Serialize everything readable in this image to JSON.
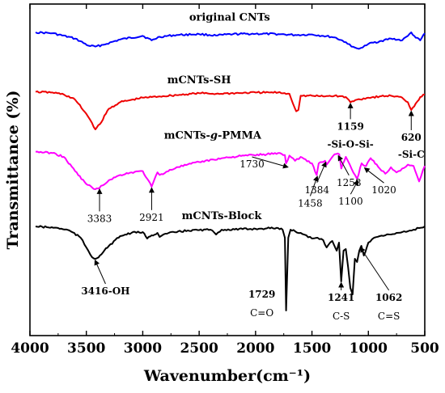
{
  "chart_data": {
    "type": "line",
    "title": "",
    "xlabel": "Wavenumber(cm⁻¹)",
    "ylabel": "Transmittance (%)",
    "xlim": [
      4000,
      500
    ],
    "x_reversed": true,
    "xticks": [
      4000,
      3500,
      3000,
      2500,
      2000,
      1500,
      1000,
      500
    ],
    "yticks_shown": false,
    "grid": false,
    "legend": "none",
    "series": [
      {
        "name": "original CNTs",
        "color": "#0000ff",
        "x": [
          3950,
          3800,
          3600,
          3480,
          3420,
          3350,
          3200,
          3000,
          2921,
          2850,
          2700,
          2500,
          2350,
          2200,
          2000,
          1800,
          1650,
          1500,
          1400,
          1300,
          1200,
          1150,
          1100,
          1050,
          1000,
          900,
          800,
          700,
          650,
          620,
          580,
          540,
          500
        ],
        "y": [
          1.0,
          0.95,
          0.65,
          0.25,
          0.2,
          0.3,
          0.6,
          0.8,
          0.55,
          0.75,
          0.85,
          0.9,
          0.82,
          0.9,
          0.92,
          0.9,
          0.85,
          0.88,
          0.8,
          0.72,
          0.45,
          0.2,
          0.1,
          0.15,
          0.35,
          0.5,
          0.65,
          0.55,
          0.8,
          1.0,
          0.7,
          0.55,
          0.95
        ]
      },
      {
        "name": "mCNTs-SH",
        "color": "#ee0000",
        "x": [
          3950,
          3800,
          3700,
          3600,
          3500,
          3450,
          3420,
          3380,
          3300,
          3200,
          3000,
          2921,
          2850,
          2700,
          2500,
          2350,
          2000,
          1800,
          1700,
          1640,
          1620,
          1600,
          1500,
          1400,
          1300,
          1200,
          1159,
          1100,
          1000,
          900,
          800,
          700,
          650,
          620,
          580,
          540,
          500
        ],
        "y": [
          0.9,
          0.85,
          0.7,
          0.3,
          -0.8,
          -1.5,
          -2.0,
          -1.6,
          -0.4,
          0.1,
          0.45,
          0.5,
          0.55,
          0.65,
          0.8,
          0.75,
          0.85,
          0.85,
          0.75,
          -0.6,
          -0.5,
          0.6,
          0.6,
          0.55,
          0.6,
          0.5,
          0.1,
          0.3,
          0.45,
          0.55,
          0.6,
          0.45,
          0.1,
          -0.5,
          0.0,
          0.5,
          0.7
        ]
      },
      {
        "name": "mCNTs-g-PMMA",
        "color": "#ff00ff",
        "x": [
          3950,
          3800,
          3700,
          3600,
          3500,
          3420,
          3383,
          3300,
          3200,
          3100,
          3000,
          2960,
          2921,
          2870,
          2850,
          2700,
          2500,
          2300,
          2100,
          1900,
          1800,
          1740,
          1730,
          1700,
          1650,
          1600,
          1500,
          1458,
          1440,
          1384,
          1370,
          1300,
          1258,
          1240,
          1200,
          1150,
          1100,
          1060,
          1020,
          980,
          900,
          850,
          800,
          750,
          700,
          650,
          600,
          550,
          500
        ],
        "y": [
          0.95,
          0.9,
          0.75,
          0.2,
          -0.3,
          -0.5,
          -0.45,
          -0.15,
          0.05,
          0.15,
          0.2,
          -0.1,
          -0.4,
          0.15,
          0.05,
          0.35,
          0.55,
          0.7,
          0.8,
          0.85,
          0.9,
          0.82,
          0.5,
          0.8,
          0.6,
          0.75,
          0.5,
          0.05,
          0.5,
          0.6,
          0.45,
          0.85,
          0.85,
          0.3,
          0.75,
          0.3,
          -0.1,
          0.5,
          0.4,
          0.7,
          0.3,
          0.1,
          0.35,
          0.15,
          0.3,
          0.45,
          0.4,
          -0.2,
          0.4
        ]
      },
      {
        "name": "mCNTs-Block",
        "color": "#000000",
        "x": [
          3950,
          3850,
          3750,
          3650,
          3550,
          3500,
          3450,
          3416,
          3380,
          3300,
          3200,
          3100,
          3000,
          2960,
          2921,
          2870,
          2850,
          2800,
          2600,
          2400,
          2350,
          2300,
          2000,
          1900,
          1800,
          1760,
          1740,
          1729,
          1710,
          1690,
          1650,
          1600,
          1550,
          1500,
          1450,
          1400,
          1370,
          1320,
          1280,
          1260,
          1241,
          1220,
          1200,
          1180,
          1160,
          1140,
          1120,
          1100,
          1080,
          1062,
          1040,
          1000,
          950,
          900,
          850,
          800,
          750,
          700,
          650,
          600,
          550,
          500
        ],
        "y": [
          1.0,
          0.95,
          0.9,
          0.75,
          0.3,
          -0.3,
          -0.9,
          -1.0,
          -0.8,
          -0.2,
          0.4,
          0.6,
          0.65,
          0.25,
          0.45,
          0.6,
          0.35,
          0.55,
          0.75,
          0.8,
          0.5,
          0.8,
          0.85,
          0.88,
          0.9,
          0.8,
          0.3,
          -4.2,
          0.3,
          0.8,
          0.7,
          0.6,
          0.45,
          0.25,
          0.3,
          0.15,
          -0.3,
          0.1,
          -0.5,
          0.0,
          -2.4,
          -0.5,
          -0.4,
          -1.5,
          -2.8,
          -3.2,
          -1.0,
          -1.2,
          -0.5,
          -0.2,
          -0.8,
          0.0,
          0.3,
          0.4,
          0.45,
          0.5,
          0.6,
          0.65,
          0.7,
          0.8,
          0.9,
          1.0
        ]
      }
    ],
    "series_labels": [
      {
        "text": "original CNTs",
        "x": 2230,
        "y": 1.65
      },
      {
        "text": "mCNTs-SH",
        "x": 2500,
        "y": 1.55
      },
      {
        "text": "mCNTs-g-PMMA",
        "x": 2380,
        "y": 1.45
      },
      {
        "text": "mCNTs-Block",
        "x": 2300,
        "y": 1.45
      }
    ],
    "annotations": [
      {
        "text": "1159",
        "bold": true,
        "series": 1,
        "x": 1159
      },
      {
        "text": "-Si-O-Si-",
        "bold": true,
        "series": 1,
        "x": 1159
      },
      {
        "text": "620",
        "bold": true,
        "series": 1,
        "x": 620
      },
      {
        "text": "-Si-C",
        "bold": true,
        "series": 1,
        "x": 620
      },
      {
        "text": "3383",
        "series": 2,
        "x": 3383
      },
      {
        "text": "2921",
        "series": 2,
        "x": 2921
      },
      {
        "text": "1730",
        "series": 2,
        "x": 1730
      },
      {
        "text": "1458",
        "series": 2,
        "x": 1458
      },
      {
        "text": "1384",
        "series": 2,
        "x": 1384
      },
      {
        "text": "1258",
        "series": 2,
        "x": 1258
      },
      {
        "text": "1100",
        "series": 2,
        "x": 1100
      },
      {
        "text": "1020",
        "series": 2,
        "x": 1020
      },
      {
        "text": "3416-OH",
        "bold": true,
        "series": 3,
        "x": 3416
      },
      {
        "text": "1729",
        "bold": true,
        "series": 3,
        "x": 1729
      },
      {
        "text": "C=O",
        "series": 3,
        "x": 1729
      },
      {
        "text": "1241",
        "bold": true,
        "series": 3,
        "x": 1241
      },
      {
        "text": "C-S",
        "series": 3,
        "x": 1241
      },
      {
        "text": "1062",
        "bold": true,
        "series": 3,
        "x": 1062
      },
      {
        "text": "C=S",
        "series": 3,
        "x": 1062
      }
    ]
  }
}
